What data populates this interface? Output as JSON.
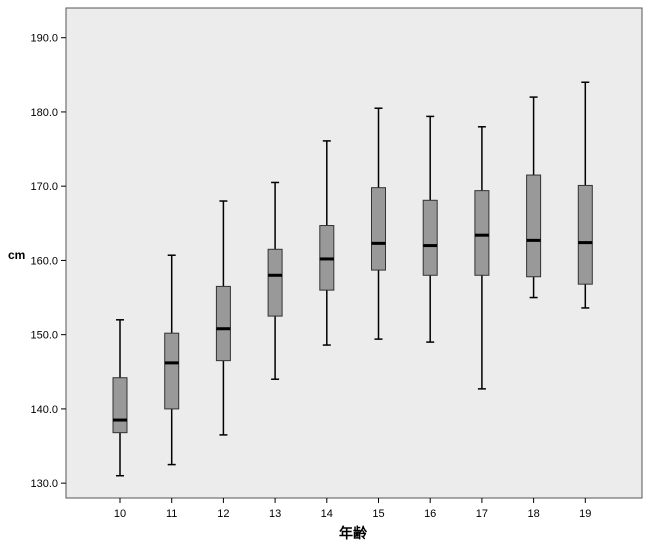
{
  "chart_data": {
    "type": "box",
    "xlabel": "年齢",
    "ylabel": "cm",
    "ylim": [
      128,
      194
    ],
    "yticks": [
      130.0,
      140.0,
      150.0,
      160.0,
      170.0,
      180.0,
      190.0
    ],
    "ytick_labels": [
      "130.0",
      "140.0",
      "150.0",
      "160.0",
      "170.0",
      "180.0",
      "190.0"
    ],
    "categories": [
      "10",
      "11",
      "12",
      "13",
      "14",
      "15",
      "16",
      "17",
      "18",
      "19"
    ],
    "boxes": [
      {
        "category": "10",
        "min": 131.0,
        "q1": 136.8,
        "median": 138.5,
        "q3": 144.2,
        "max": 152.0
      },
      {
        "category": "11",
        "min": 132.5,
        "q1": 140.0,
        "median": 146.2,
        "q3": 150.2,
        "max": 160.7
      },
      {
        "category": "12",
        "min": 136.5,
        "q1": 146.5,
        "median": 150.8,
        "q3": 156.5,
        "max": 168.0
      },
      {
        "category": "13",
        "min": 144.0,
        "q1": 152.5,
        "median": 158.0,
        "q3": 161.5,
        "max": 170.5
      },
      {
        "category": "14",
        "min": 148.6,
        "q1": 156.0,
        "median": 160.2,
        "q3": 164.7,
        "max": 176.1
      },
      {
        "category": "15",
        "min": 149.4,
        "q1": 158.7,
        "median": 162.3,
        "q3": 169.8,
        "max": 180.5
      },
      {
        "category": "16",
        "min": 149.0,
        "q1": 158.0,
        "median": 162.0,
        "q3": 168.1,
        "max": 179.4
      },
      {
        "category": "17",
        "min": 142.7,
        "q1": 158.0,
        "median": 163.4,
        "q3": 169.4,
        "max": 178.0
      },
      {
        "category": "18",
        "min": 155.0,
        "q1": 157.8,
        "median": 162.7,
        "q3": 171.5,
        "max": 182.0
      },
      {
        "category": "19",
        "min": 153.6,
        "q1": 156.8,
        "median": 162.4,
        "q3": 170.1,
        "max": 184.0
      }
    ],
    "colors": {
      "plot_background": "#ececec",
      "box_fill": "#999999",
      "stroke": "#000000",
      "page_background": "#ffffff"
    },
    "grid": false,
    "legend": "none"
  }
}
